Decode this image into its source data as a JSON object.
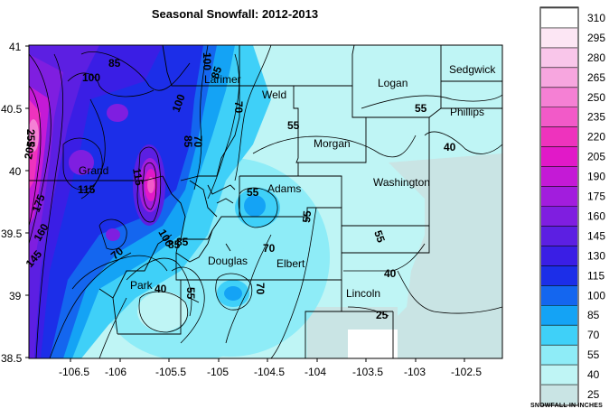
{
  "title": "Seasonal Snowfall: 2012-2013",
  "x_ticks": [
    "-106.5",
    "-106",
    "-105.5",
    "-105",
    "-104.5",
    "-104",
    "-103.5",
    "-103",
    "-102.5"
  ],
  "y_ticks": [
    "41",
    "40.5",
    "40",
    "39.5",
    "39",
    "38.5"
  ],
  "counties": [
    "Sedgwick",
    "Logan",
    "Phillips",
    "Larimer",
    "Weld",
    "Morgan",
    "Grand",
    "Washington",
    "Adams",
    "Elbert",
    "Douglas",
    "Park",
    "Lincoln"
  ],
  "contour_labels": [
    "85",
    "100",
    "100",
    "85",
    "70",
    "55",
    "55",
    "40",
    "100",
    "85",
    "70",
    "255",
    "205",
    "175",
    "160",
    "145",
    "115",
    "115",
    "55",
    "70",
    "85",
    "55",
    "100",
    "85",
    "70",
    "40",
    "55",
    "70",
    "40",
    "25"
  ],
  "legend": {
    "values": [
      "310",
      "295",
      "280",
      "265",
      "250",
      "235",
      "220",
      "205",
      "190",
      "175",
      "160",
      "145",
      "130",
      "115",
      "100",
      "85",
      "70",
      "55",
      "40",
      "25"
    ],
    "colors": [
      "#ffffff",
      "#fce6f4",
      "#f9c6ea",
      "#f7a6df",
      "#f580d4",
      "#f25ac8",
      "#ee33bd",
      "#e119c8",
      "#c41ad6",
      "#a21ddd",
      "#7f1ee0",
      "#5c1fe2",
      "#3a1ee5",
      "#1c2ee8",
      "#1466ef",
      "#14a3f5",
      "#3fd0f8",
      "#8eecf7",
      "#bff5f5",
      "#c9e4e4"
    ],
    "label": "SNOWFALL IN INCHES"
  }
}
